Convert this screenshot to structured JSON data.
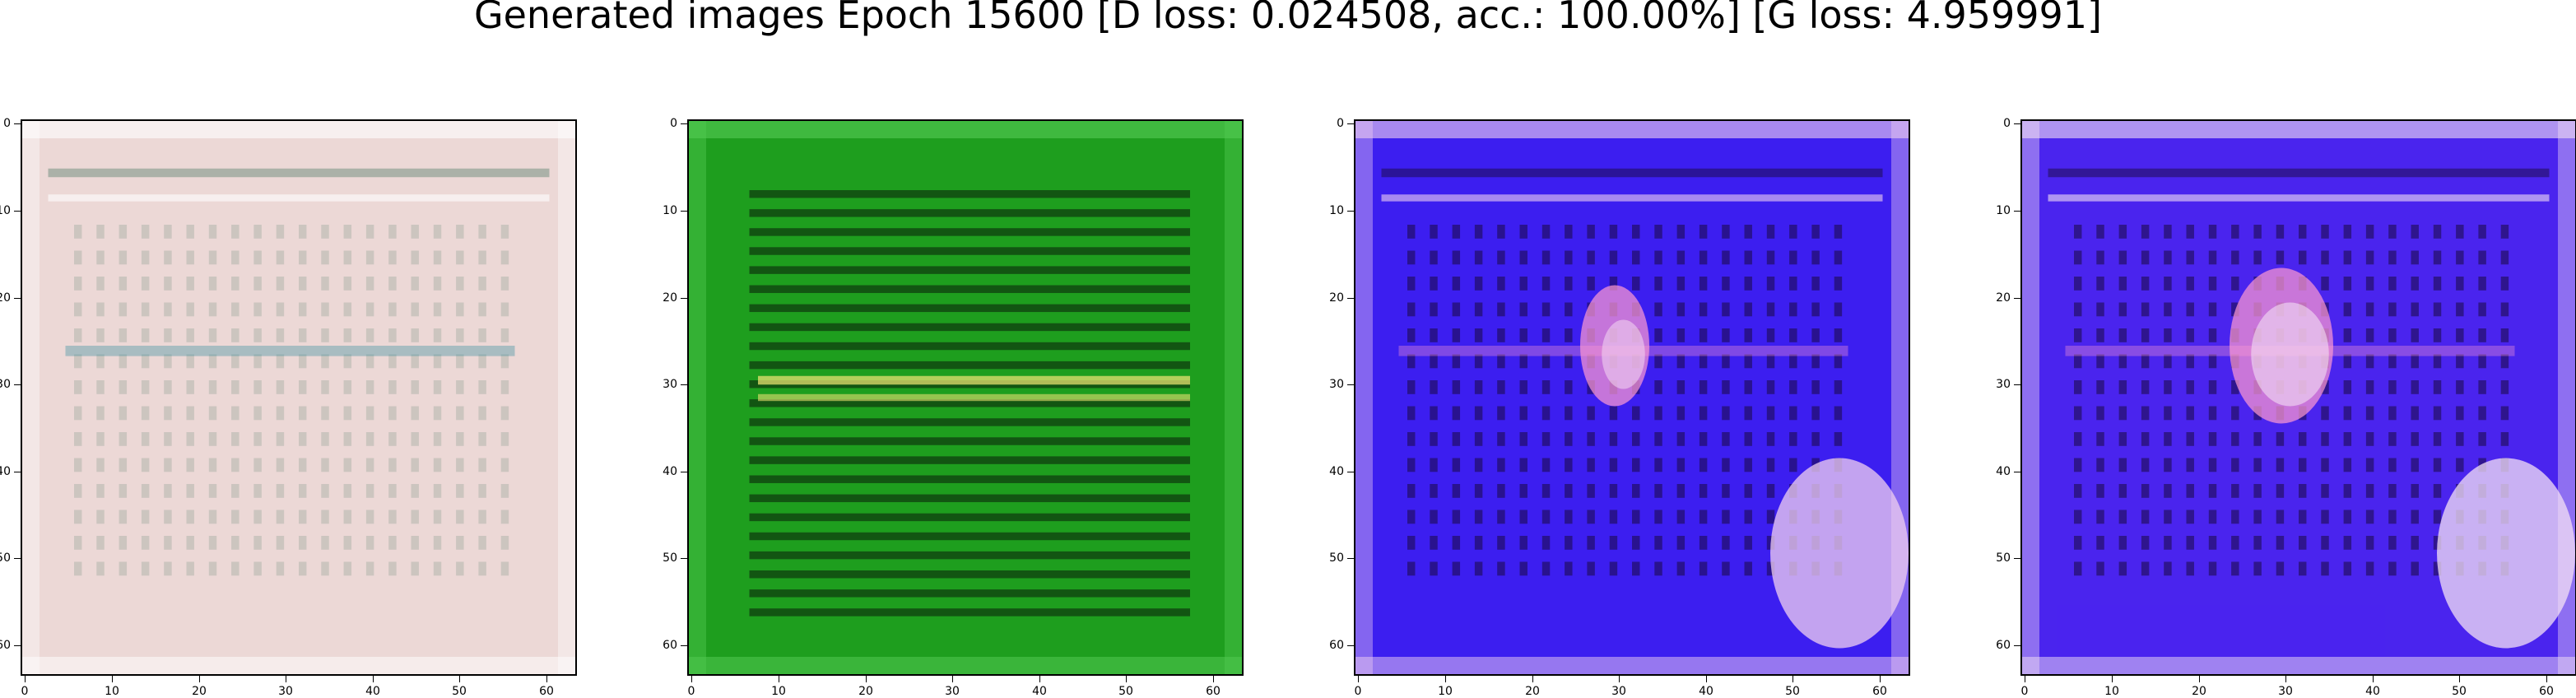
{
  "figure": {
    "title": "Generated images Epoch 15600 [D loss: 0.024508, acc.: 100.00%] [G loss: 4.959991]"
  },
  "axes": {
    "ticks": [
      "0",
      "10",
      "20",
      "30",
      "40",
      "50",
      "60"
    ]
  },
  "panels": [
    {
      "name": "generated-image-1",
      "base": "#ecd8d6",
      "stripe": "#6a8a7a",
      "accent": "#2a8a9a",
      "glow": "#ffffff"
    },
    {
      "name": "generated-image-2",
      "base": "#1e9e1e",
      "stripe": "#0a1a0a",
      "accent": "#e8e070",
      "glow": "#55cc55"
    },
    {
      "name": "generated-image-3",
      "base": "#3c1ef0",
      "stripe": "#1a0a40",
      "accent": "#ff9ad0",
      "glow": "#f0d0f0"
    },
    {
      "name": "generated-image-4",
      "base": "#4a24ee",
      "stripe": "#1a0a40",
      "accent": "#ff9ad0",
      "glow": "#f4e0f4"
    }
  ]
}
